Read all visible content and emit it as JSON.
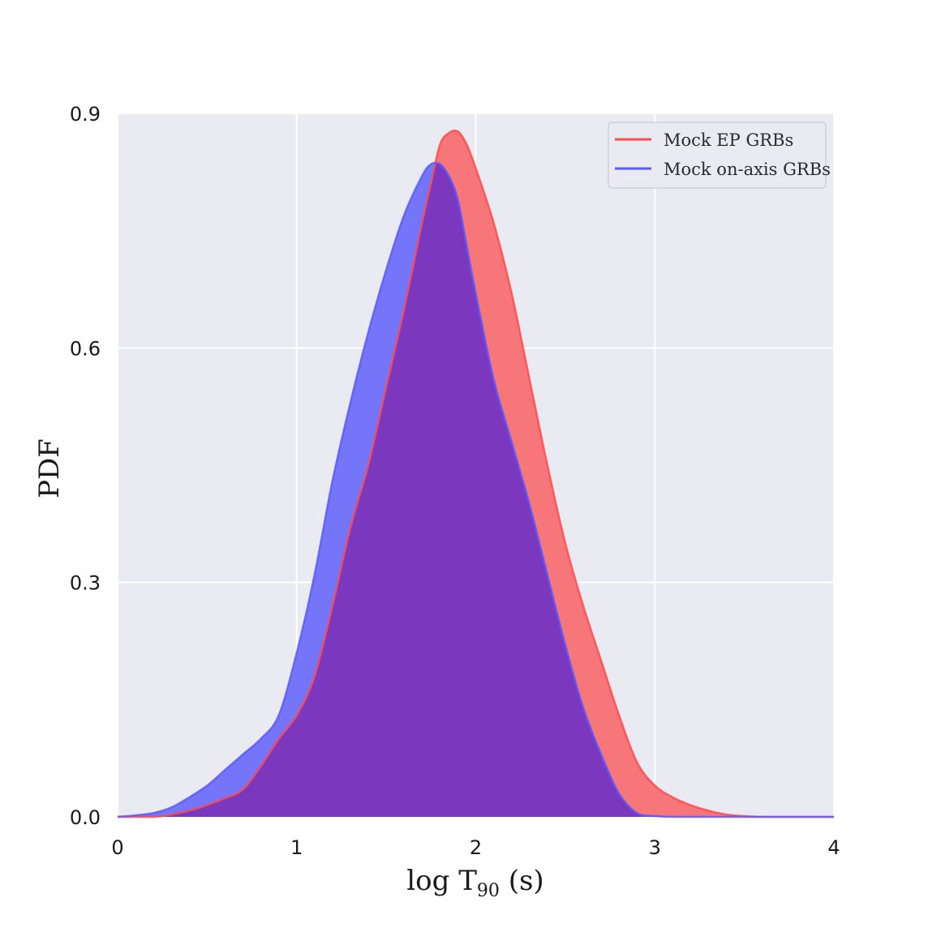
{
  "chart_data": {
    "type": "area",
    "xlabel": "log T",
    "xlabel_sub": "90",
    "xlabel_unit": " (s)",
    "ylabel": "PDF",
    "xlim": [
      0,
      4
    ],
    "ylim": [
      0,
      0.9
    ],
    "xticks": [
      0,
      1,
      2,
      3,
      4
    ],
    "xtick_labels": [
      "0",
      "1",
      "2",
      "3",
      "4"
    ],
    "yticks": [
      0.0,
      0.3,
      0.6,
      0.9
    ],
    "ytick_labels": [
      "0.0",
      "0.3",
      "0.6",
      "0.9"
    ],
    "grid": true,
    "legend_position": "top-right",
    "overlap_color": "#7b38bf",
    "series": [
      {
        "name": "Mock EP GRBs",
        "color": "#ff4b4b",
        "fill": "#f7767a",
        "x": [
          0.0,
          0.2,
          0.3,
          0.4,
          0.5,
          0.6,
          0.7,
          0.8,
          0.9,
          1.0,
          1.1,
          1.2,
          1.3,
          1.4,
          1.5,
          1.6,
          1.7,
          1.75,
          1.8,
          1.85,
          1.9,
          1.95,
          2.0,
          2.1,
          2.2,
          2.3,
          2.4,
          2.5,
          2.6,
          2.7,
          2.8,
          2.9,
          3.0,
          3.1,
          3.2,
          3.3,
          3.4,
          3.5,
          3.6,
          3.7,
          3.8,
          4.0
        ],
        "y": [
          0.0,
          0.0,
          0.003,
          0.008,
          0.015,
          0.024,
          0.035,
          0.065,
          0.1,
          0.13,
          0.18,
          0.27,
          0.37,
          0.45,
          0.55,
          0.65,
          0.76,
          0.81,
          0.86,
          0.875,
          0.877,
          0.86,
          0.83,
          0.76,
          0.67,
          0.56,
          0.45,
          0.35,
          0.27,
          0.2,
          0.13,
          0.07,
          0.04,
          0.025,
          0.015,
          0.008,
          0.003,
          0.001,
          0.0,
          0.0,
          0.0,
          0.0
        ]
      },
      {
        "name": "Mock on-axis GRBs",
        "color": "#5b5bff",
        "fill": "#7575fa",
        "x": [
          0.0,
          0.1,
          0.2,
          0.3,
          0.4,
          0.5,
          0.6,
          0.7,
          0.8,
          0.9,
          1.0,
          1.1,
          1.2,
          1.3,
          1.4,
          1.5,
          1.6,
          1.7,
          1.75,
          1.8,
          1.85,
          1.9,
          1.95,
          2.0,
          2.1,
          2.2,
          2.3,
          2.4,
          2.5,
          2.6,
          2.7,
          2.8,
          2.9,
          3.0,
          3.1,
          3.2,
          4.0
        ],
        "y": [
          0.0,
          0.002,
          0.005,
          0.012,
          0.025,
          0.04,
          0.06,
          0.08,
          0.1,
          0.13,
          0.21,
          0.31,
          0.43,
          0.53,
          0.62,
          0.7,
          0.77,
          0.82,
          0.835,
          0.835,
          0.82,
          0.79,
          0.73,
          0.67,
          0.56,
          0.48,
          0.4,
          0.31,
          0.22,
          0.14,
          0.08,
          0.03,
          0.005,
          0.001,
          0.0,
          0.0,
          0.0
        ]
      }
    ]
  }
}
